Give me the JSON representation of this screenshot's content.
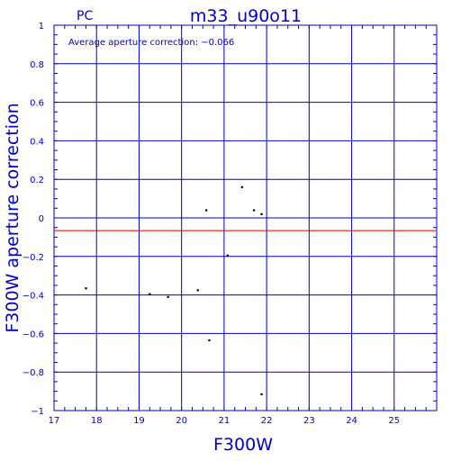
{
  "chart_data": {
    "type": "scatter",
    "title": "m33_u90o11",
    "corner_label": "PC",
    "annotation": "Average aperture correction: −0.066",
    "xlabel": "F300W",
    "ylabel": "F300W aperture correction",
    "xlim": [
      17,
      26
    ],
    "ylim": [
      -1,
      1
    ],
    "x_ticks": [
      17,
      18,
      19,
      20,
      21,
      22,
      23,
      24,
      25
    ],
    "y_ticks": [
      1,
      0.8,
      0.6,
      0.4,
      0.2,
      0,
      -0.2,
      -0.4,
      -0.6,
      -0.8,
      -1
    ],
    "y_tick_labels": [
      "1",
      "0.8",
      "0.6",
      "0.4",
      "0.2",
      "0",
      "−0.2",
      "−0.4",
      "−0.6",
      "−0.8",
      "−1"
    ],
    "grid": true,
    "reference_line": -0.066,
    "colors": {
      "axes": "#0000cc",
      "points": "#000000",
      "reference_line": "#dd0000"
    },
    "points": [
      {
        "x": 17.75,
        "y": -0.365
      },
      {
        "x": 19.25,
        "y": -0.395
      },
      {
        "x": 19.68,
        "y": -0.41
      },
      {
        "x": 20.38,
        "y": -0.375
      },
      {
        "x": 20.58,
        "y": 0.04
      },
      {
        "x": 20.65,
        "y": -0.635
      },
      {
        "x": 21.08,
        "y": -0.195
      },
      {
        "x": 21.42,
        "y": 0.16
      },
      {
        "x": 21.7,
        "y": 0.04
      },
      {
        "x": 21.88,
        "y": 0.02
      },
      {
        "x": 21.88,
        "y": -0.915
      }
    ]
  }
}
